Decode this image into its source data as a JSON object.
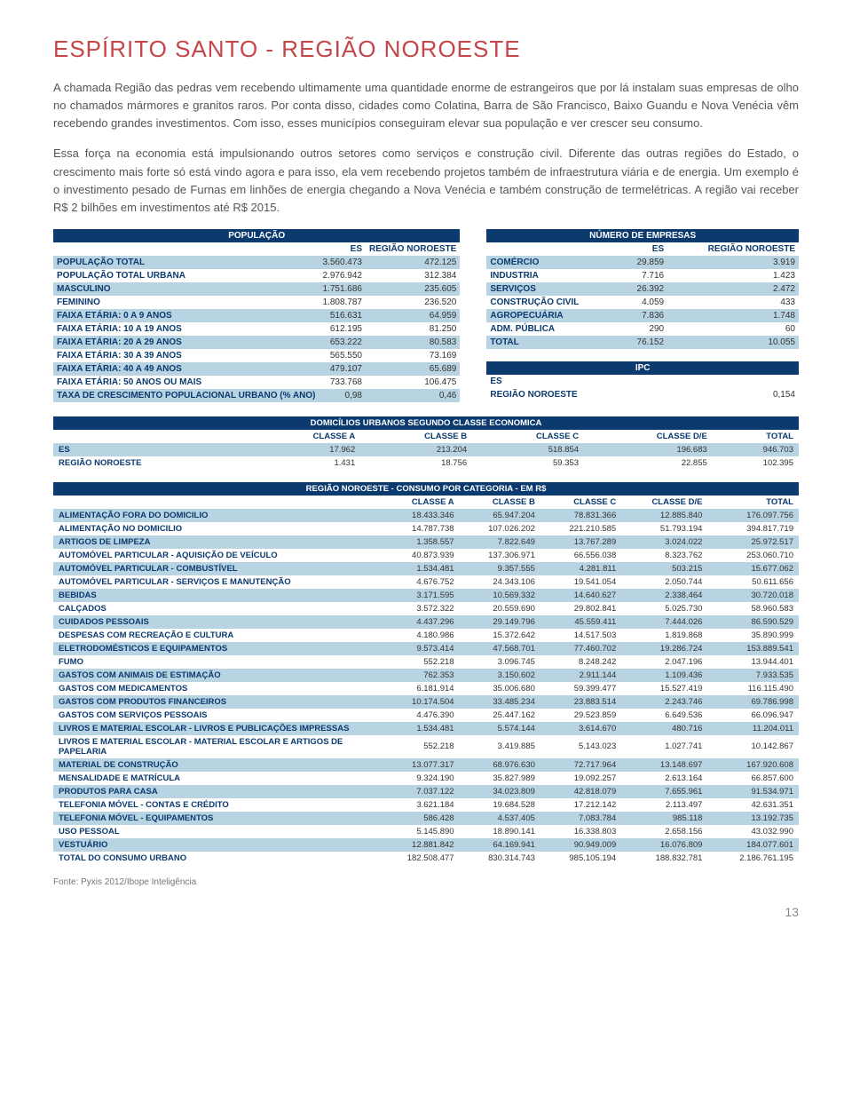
{
  "title": "ESPÍRITO SANTO - REGIÃO NOROESTE",
  "para1": "A chamada Região das pedras vem recebendo ultimamente uma quantidade enorme de estrangeiros que por lá instalam suas empresas de olho no chamados mármores e granitos raros. Por conta disso, cidades como Colatina, Barra de São Francisco, Baixo Guandu e Nova Venécia vêm recebendo grandes investimentos. Com isso, esses municípios conseguiram elevar sua população e ver crescer seu consumo.",
  "para2": "Essa força na economia está impulsionando outros setores como serviços e construção civil. Diferente das outras regiões do Estado, o crescimento mais forte só está vindo agora e para isso, ela vem recebendo projetos também de infraestrutura viária e de energia. Um exemplo é o investimento pesado de Furnas em linhões de energia chegando a Nova Venécia e também construção de termelétricas.  A região vai receber R$ 2 bilhões em investimentos até R$ 2015.",
  "colors": {
    "navy": "#0b3a6f",
    "alt_row": "#b8d4e3",
    "title_red": "#c4464a",
    "body_text": "#555555"
  },
  "pop": {
    "header": "POPULAÇÃO",
    "cols": [
      "",
      "ES",
      "REGIÃO NOROESTE"
    ],
    "rows": [
      {
        "l": "POPULAÇÃO TOTAL",
        "a": "3.560.473",
        "b": "472.125",
        "alt": true
      },
      {
        "l": "POPULAÇÃO TOTAL URBANA",
        "a": "2.976.942",
        "b": "312.384",
        "alt": false
      },
      {
        "l": "MASCULINO",
        "a": "1.751.686",
        "b": "235.605",
        "alt": true
      },
      {
        "l": "FEMININO",
        "a": "1.808.787",
        "b": "236.520",
        "alt": false
      },
      {
        "l": "FAIXA ETÁRIA: 0 A 9 ANOS",
        "a": "516.631",
        "b": "64.959",
        "alt": true
      },
      {
        "l": "FAIXA ETÁRIA: 10 A 19 ANOS",
        "a": "612.195",
        "b": "81.250",
        "alt": false
      },
      {
        "l": "FAIXA ETÁRIA: 20 A 29 ANOS",
        "a": "653.222",
        "b": "80.583",
        "alt": true
      },
      {
        "l": "FAIXA ETÁRIA: 30 A 39 ANOS",
        "a": "565.550",
        "b": "73.169",
        "alt": false
      },
      {
        "l": "FAIXA ETÁRIA: 40 A 49 ANOS",
        "a": "479.107",
        "b": "65.689",
        "alt": true
      },
      {
        "l": "FAIXA ETÁRIA: 50 ANOS OU MAIS",
        "a": "733.768",
        "b": "106.475",
        "alt": false
      },
      {
        "l": "TAXA DE CRESCIMENTO POPULACIONAL URBANO (% ANO)",
        "a": "0,98",
        "b": "0,46",
        "alt": true
      }
    ]
  },
  "emp": {
    "header": "NÚMERO DE EMPRESAS",
    "cols": [
      "",
      "ES",
      "REGIÃO NOROESTE"
    ],
    "rows": [
      {
        "l": "COMÉRCIO",
        "a": "29.859",
        "b": "3.919",
        "alt": true
      },
      {
        "l": "INDUSTRIA",
        "a": "7.716",
        "b": "1.423",
        "alt": false
      },
      {
        "l": "SERVIÇOS",
        "a": "26.392",
        "b": "2.472",
        "alt": true
      },
      {
        "l": "CONSTRUÇÃO CIVIL",
        "a": "4.059",
        "b": "433",
        "alt": false
      },
      {
        "l": "AGROPECUÁRIA",
        "a": "7.836",
        "b": "1.748",
        "alt": true
      },
      {
        "l": "ADM. PÚBLICA",
        "a": "290",
        "b": "60",
        "alt": false
      },
      {
        "l": "TOTAL",
        "a": "76.152",
        "b": "10.055",
        "alt": true
      }
    ]
  },
  "ipc": {
    "header": "IPC",
    "rows": [
      {
        "l": "ES",
        "v": ""
      },
      {
        "l": "REGIÃO NOROESTE",
        "v": "0,154"
      }
    ]
  },
  "dom": {
    "header": "DOMICÍLIOS URBANOS SEGUNDO CLASSE ECONOMICA",
    "cols": [
      "",
      "CLASSE A",
      "CLASSE B",
      "CLASSE C",
      "CLASSE D/E",
      "TOTAL"
    ],
    "rows": [
      {
        "l": "ES",
        "v": [
          "17.962",
          "213.204",
          "518.854",
          "196.683",
          "946.703"
        ],
        "alt": true
      },
      {
        "l": "REGIÃO NOROESTE",
        "v": [
          "1.431",
          "18.756",
          "59.353",
          "22.855",
          "102.395"
        ],
        "alt": false
      }
    ]
  },
  "cons": {
    "header": "REGIÃO NOROESTE - CONSUMO POR CATEGORIA - EM R$",
    "cols": [
      "",
      "CLASSE A",
      "CLASSE B",
      "CLASSE C",
      "CLASSE D/E",
      "TOTAL"
    ],
    "rows": [
      {
        "l": "ALIMENTAÇÃO FORA DO DOMICILIO",
        "v": [
          "18.433.346",
          "65.947.204",
          "78.831.366",
          "12.885.840",
          "176.097.756"
        ],
        "alt": true
      },
      {
        "l": "ALIMENTAÇÃO NO DOMICILIO",
        "v": [
          "14.787.738",
          "107.026.202",
          "221.210.585",
          "51.793.194",
          "394.817.719"
        ],
        "alt": false
      },
      {
        "l": "ARTIGOS DE LIMPEZA",
        "v": [
          "1.358.557",
          "7.822.649",
          "13.767.289",
          "3.024.022",
          "25.972.517"
        ],
        "alt": true
      },
      {
        "l": "AUTOMÓVEL PARTICULAR - AQUISIÇÃO DE VEÍCULO",
        "v": [
          "40.873.939",
          "137.306.971",
          "66.556.038",
          "8.323.762",
          "253.060.710"
        ],
        "alt": false
      },
      {
        "l": "AUTOMÓVEL PARTICULAR - COMBUSTÍVEL",
        "v": [
          "1.534.481",
          "9.357.555",
          "4.281.811",
          "503.215",
          "15.677.062"
        ],
        "alt": true
      },
      {
        "l": "AUTOMÓVEL PARTICULAR - SERVIÇOS E MANUTENÇÃO",
        "v": [
          "4.676.752",
          "24.343.106",
          "19.541.054",
          "2.050.744",
          "50.611.656"
        ],
        "alt": false
      },
      {
        "l": "BEBIDAS",
        "v": [
          "3.171.595",
          "10.569.332",
          "14.640.627",
          "2.338.464",
          "30.720.018"
        ],
        "alt": true
      },
      {
        "l": "CALÇADOS",
        "v": [
          "3.572.322",
          "20.559.690",
          "29.802.841",
          "5.025.730",
          "58.960.583"
        ],
        "alt": false
      },
      {
        "l": "CUIDADOS PESSOAIS",
        "v": [
          "4.437.296",
          "29.149.796",
          "45.559.411",
          "7.444.026",
          "86.590.529"
        ],
        "alt": true
      },
      {
        "l": "DESPESAS COM RECREAÇÃO E CULTURA",
        "v": [
          "4.180.986",
          "15.372.642",
          "14.517.503",
          "1.819.868",
          "35.890.999"
        ],
        "alt": false
      },
      {
        "l": "ELETRODOMÉSTICOS E EQUIPAMENTOS",
        "v": [
          "9.573.414",
          "47.568.701",
          "77.460.702",
          "19.286.724",
          "153.889.541"
        ],
        "alt": true
      },
      {
        "l": "FUMO",
        "v": [
          "552.218",
          "3.096.745",
          "8.248.242",
          "2.047.196",
          "13.944.401"
        ],
        "alt": false
      },
      {
        "l": "GASTOS COM ANIMAIS DE ESTIMAÇÃO",
        "v": [
          "762.353",
          "3.150.602",
          "2.911.144",
          "1.109.436",
          "7.933.535"
        ],
        "alt": true
      },
      {
        "l": "GASTOS COM MEDICAMENTOS",
        "v": [
          "6.181.914",
          "35.006.680",
          "59.399.477",
          "15.527.419",
          "116.115.490"
        ],
        "alt": false
      },
      {
        "l": "GASTOS COM PRODUTOS FINANCEIROS",
        "v": [
          "10.174.504",
          "33.485.234",
          "23.883.514",
          "2.243.746",
          "69.786.998"
        ],
        "alt": true
      },
      {
        "l": "GASTOS COM SERVIÇOS PESSOAIS",
        "v": [
          "4.476.390",
          "25.447.162",
          "29.523.859",
          "6.649.536",
          "66.096.947"
        ],
        "alt": false
      },
      {
        "l": "LIVROS E MATERIAL ESCOLAR - LIVROS E PUBLICAÇÕES IMPRESSAS",
        "v": [
          "1.534.481",
          "5.574.144",
          "3.614.670",
          "480.716",
          "11.204.011"
        ],
        "alt": true
      },
      {
        "l": "LIVROS E MATERIAL ESCOLAR - MATERIAL ESCOLAR E ARTIGOS DE PAPELARIA",
        "v": [
          "552.218",
          "3.419.885",
          "5.143.023",
          "1.027.741",
          "10.142.867"
        ],
        "alt": false
      },
      {
        "l": "MATERIAL DE CONSTRUÇÃO",
        "v": [
          "13.077.317",
          "68.976.630",
          "72.717.964",
          "13.148.697",
          "167.920.608"
        ],
        "alt": true
      },
      {
        "l": "MENSALIDADE E MATRÍCULA",
        "v": [
          "9.324.190",
          "35.827.989",
          "19.092.257",
          "2.613.164",
          "66.857.600"
        ],
        "alt": false
      },
      {
        "l": "PRODUTOS PARA CASA",
        "v": [
          "7.037.122",
          "34.023.809",
          "42.818.079",
          "7.655.961",
          "91.534.971"
        ],
        "alt": true
      },
      {
        "l": "TELEFONIA MÓVEL - CONTAS E CRÉDITO",
        "v": [
          "3.621.184",
          "19.684.528",
          "17.212.142",
          "2.113.497",
          "42.631.351"
        ],
        "alt": false
      },
      {
        "l": "TELEFONIA MÓVEL - EQUIPAMENTOS",
        "v": [
          "586.428",
          "4.537.405",
          "7.083.784",
          "985.118",
          "13.192.735"
        ],
        "alt": true
      },
      {
        "l": "USO PESSOAL",
        "v": [
          "5.145.890",
          "18.890.141",
          "16.338.803",
          "2.658.156",
          "43.032.990"
        ],
        "alt": false
      },
      {
        "l": "VESTUÁRIO",
        "v": [
          "12.881.842",
          "64.169.941",
          "90.949.009",
          "16.076.809",
          "184.077.601"
        ],
        "alt": true
      },
      {
        "l": "TOTAL DO CONSUMO URBANO",
        "v": [
          "182.508.477",
          "830.314.743",
          "985.105.194",
          "188.832.781",
          "2.186.761.195"
        ],
        "alt": false
      }
    ]
  },
  "source": "Fonte: Pyxis 2012/Ibope Inteligência",
  "page": "13"
}
